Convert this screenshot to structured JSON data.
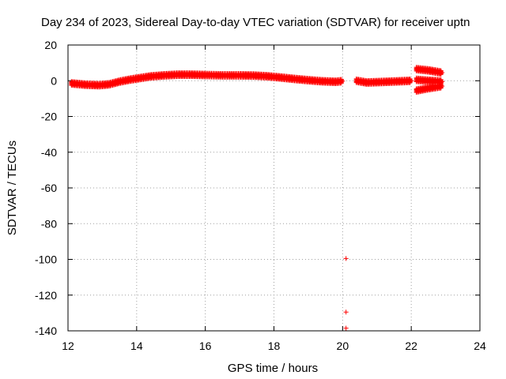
{
  "chart_data": {
    "type": "scatter",
    "title": "Day 234 of 2023, Sidereal Day-to-day VTEC variation (SDTVAR) for receiver uptn",
    "xlabel": "GPS time / hours",
    "ylabel": "SDTVAR / TECUs",
    "xlim": [
      12,
      24
    ],
    "ylim": [
      -140,
      20
    ],
    "xticks": [
      12,
      14,
      16,
      18,
      20,
      22,
      24
    ],
    "yticks": [
      20,
      0,
      -20,
      -40,
      -60,
      -80,
      -100,
      -120,
      -140
    ],
    "grid": true,
    "marker": "+",
    "color": "#ff0000",
    "series": [
      {
        "name": "main-trend",
        "points": [
          [
            12.1,
            -1.5
          ],
          [
            12.5,
            -2.2
          ],
          [
            12.9,
            -2.5
          ],
          [
            13.2,
            -2.0
          ],
          [
            13.5,
            -0.5
          ],
          [
            13.8,
            0.6
          ],
          [
            14.1,
            1.5
          ],
          [
            14.4,
            2.4
          ],
          [
            14.8,
            3.0
          ],
          [
            15.2,
            3.4
          ],
          [
            15.6,
            3.4
          ],
          [
            16.0,
            3.2
          ],
          [
            16.5,
            3.0
          ],
          [
            17.0,
            3.0
          ],
          [
            17.4,
            2.9
          ],
          [
            17.8,
            2.5
          ],
          [
            18.2,
            1.8
          ],
          [
            18.6,
            1.0
          ],
          [
            19.0,
            0.3
          ],
          [
            19.4,
            -0.3
          ],
          [
            19.8,
            -0.6
          ],
          [
            20.0,
            -0.2
          ]
        ]
      },
      {
        "name": "after-gap",
        "points": [
          [
            20.4,
            0.0
          ],
          [
            20.7,
            -1.0
          ],
          [
            21.0,
            -0.8
          ],
          [
            21.4,
            -0.5
          ],
          [
            21.8,
            -0.2
          ],
          [
            22.0,
            0.0
          ]
        ]
      },
      {
        "name": "upper-branch",
        "points": [
          [
            22.15,
            6.5
          ],
          [
            22.5,
            5.8
          ],
          [
            22.9,
            4.5
          ]
        ]
      },
      {
        "name": "mid-branch",
        "points": [
          [
            22.15,
            0.5
          ],
          [
            22.5,
            0.0
          ],
          [
            22.9,
            -0.5
          ]
        ]
      },
      {
        "name": "lower-branch",
        "points": [
          [
            22.15,
            -5.5
          ],
          [
            22.5,
            -4.2
          ],
          [
            22.9,
            -3.0
          ]
        ]
      },
      {
        "name": "outliers",
        "points": [
          [
            20.1,
            -99.5
          ],
          [
            20.1,
            -129.5
          ],
          [
            20.1,
            -138.5
          ]
        ]
      }
    ]
  }
}
